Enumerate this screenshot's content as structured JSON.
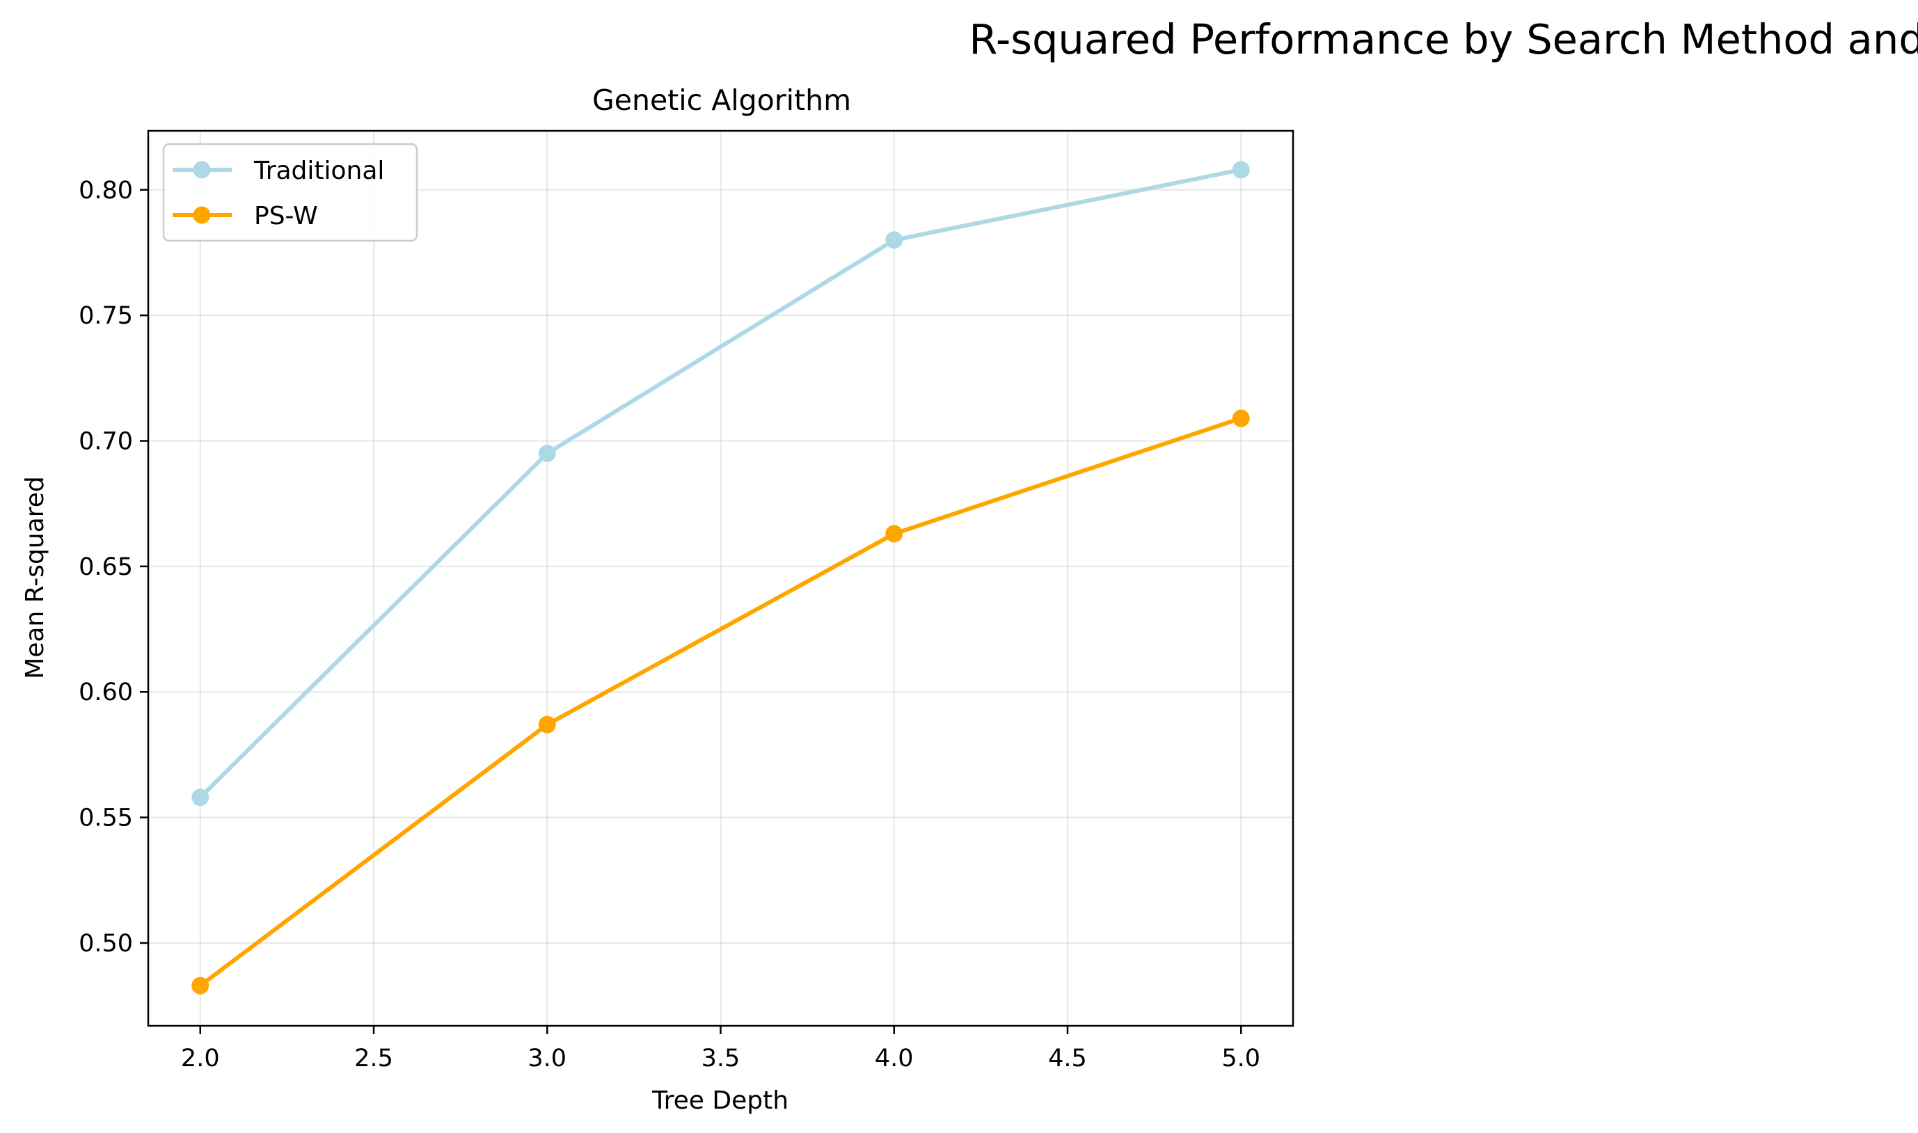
{
  "figure_title": "R-squared Performance by Search Method and Tree Type",
  "chart_data": {
    "type": "line",
    "title": "Genetic Algorithm",
    "xlabel": "Tree Depth",
    "ylabel": "Mean R-squared",
    "x": [
      2.0,
      3.0,
      4.0,
      5.0
    ],
    "xlim": [
      1.85,
      5.15
    ],
    "ylim": [
      0.467,
      0.8235
    ],
    "x_ticks": [
      2.0,
      2.5,
      3.0,
      3.5,
      4.0,
      4.5,
      5.0
    ],
    "x_tick_labels": [
      "2.0",
      "2.5",
      "3.0",
      "3.5",
      "4.0",
      "4.5",
      "5.0"
    ],
    "y_ticks": [
      0.5,
      0.55,
      0.6,
      0.65,
      0.7,
      0.75,
      0.8
    ],
    "y_tick_labels": [
      "0.50",
      "0.55",
      "0.60",
      "0.65",
      "0.70",
      "0.75",
      "0.80"
    ],
    "grid": true,
    "legend_position": "upper-left",
    "series": [
      {
        "name": "Traditional",
        "color": "#add8e6",
        "values": [
          0.558,
          0.695,
          0.78,
          0.808
        ]
      },
      {
        "name": "PS-W",
        "color": "#ffa500",
        "values": [
          0.483,
          0.587,
          0.663,
          0.709
        ]
      }
    ]
  }
}
